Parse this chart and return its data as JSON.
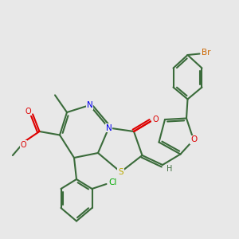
{
  "bg_color": "#e8e8e8",
  "bond_color": "#3a6b3a",
  "bond_width": 1.5,
  "atom_colors": {
    "C": "#3a6b3a",
    "N": "#0000ee",
    "O": "#dd0000",
    "S": "#bbaa00",
    "Br": "#cc6600",
    "Cl": "#00aa00",
    "H": "#3a6b3a"
  }
}
